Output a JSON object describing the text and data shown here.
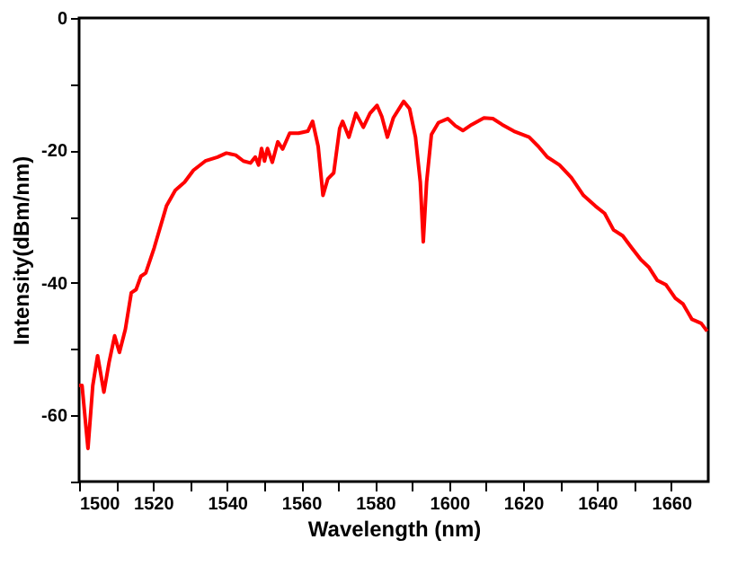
{
  "chart_data": {
    "type": "line",
    "xlabel": "Wavelength (nm)",
    "ylabel": "Intensity(dBm/nm)",
    "xlim": [
      1500,
      1670
    ],
    "ylim": [
      -70,
      0
    ],
    "xticks": [
      1500,
      {
        "value": 1510,
        "label": null
      },
      1520,
      {
        "value": 1530,
        "label": null
      },
      1540,
      {
        "value": 1550,
        "label": null
      },
      1560,
      {
        "value": 1570,
        "label": null
      },
      1580,
      {
        "value": 1590,
        "label": null
      },
      1600,
      {
        "value": 1610,
        "label": null
      },
      1620,
      {
        "value": 1630,
        "label": null
      },
      1640,
      {
        "value": 1650,
        "label": null
      },
      1660
    ],
    "yticks": [
      {
        "value": -70,
        "label": null
      },
      -60,
      {
        "value": -50,
        "label": null
      },
      -40,
      {
        "value": -30,
        "label": null
      },
      -20,
      {
        "value": -10,
        "label": null
      },
      0
    ],
    "grid": false,
    "marker": "none",
    "line_style": "solid",
    "x": [
      1500,
      1500.8,
      1502.4,
      1503.7,
      1505,
      1506.7,
      1508.1,
      1509.6,
      1510.9,
      1512.5,
      1514.1,
      1515.4,
      1516.7,
      1518,
      1520.3,
      1523.6,
      1526,
      1528.5,
      1530.9,
      1534.1,
      1537.4,
      1539.8,
      1542.3,
      1544.4,
      1546.3,
      1547.6,
      1548.5,
      1549.3,
      1550.1,
      1550.9,
      1552.2,
      1553.7,
      1555,
      1556.9,
      1559.3,
      1561.8,
      1563.1,
      1564.6,
      1565.9,
      1567.2,
      1568.8,
      1570.4,
      1571.2,
      1572.9,
      1574.8,
      1576.8,
      1578.6,
      1580.5,
      1581.8,
      1583.3,
      1584.9,
      1587.7,
      1589.3,
      1590.9,
      1592.2,
      1593,
      1593.9,
      1595.2,
      1597.1,
      1599.6,
      1601.7,
      1603.7,
      1606.1,
      1609.4,
      1611.8,
      1614.3,
      1617.5,
      1621.6,
      1624.1,
      1626.5,
      1629.8,
      1633,
      1636.3,
      1639.5,
      1642,
      1644.4,
      1646.9,
      1649.3,
      1651.8,
      1653.9,
      1656.2,
      1658.6,
      1661.1,
      1663.2,
      1665.6,
      1668.1,
      1669.7
    ],
    "series": [
      {
        "color": "#ff0000",
        "values": [
          -55.5,
          -55.5,
          -65,
          -55.5,
          -51,
          -56.5,
          -52,
          -48,
          -50.5,
          -47,
          -41.5,
          -41,
          -39,
          -38.5,
          -34.7,
          -28.4,
          -26,
          -24.8,
          -23,
          -21.6,
          -21,
          -20.4,
          -20.7,
          -21.6,
          -21.9,
          -21,
          -22.2,
          -19.7,
          -21.6,
          -19.7,
          -21.8,
          -18.7,
          -19.8,
          -17.4,
          -17.4,
          -17.1,
          -15.6,
          -19.4,
          -26.8,
          -24.3,
          -23.4,
          -16.7,
          -15.6,
          -18,
          -14.4,
          -16.5,
          -14.4,
          -13.2,
          -14.9,
          -18,
          -15.1,
          -12.6,
          -13.7,
          -18,
          -24.8,
          -33.8,
          -24.8,
          -17.6,
          -15.8,
          -15.2,
          -16.3,
          -17,
          -16.1,
          -15.1,
          -15.2,
          -16.1,
          -17.1,
          -18,
          -19.4,
          -21,
          -22.2,
          -24.1,
          -26.8,
          -28.4,
          -29.5,
          -32,
          -32.9,
          -34.7,
          -36.5,
          -37.6,
          -39.6,
          -40.3,
          -42.3,
          -43.2,
          -45.5,
          -46.1,
          -47.3
        ]
      }
    ]
  }
}
